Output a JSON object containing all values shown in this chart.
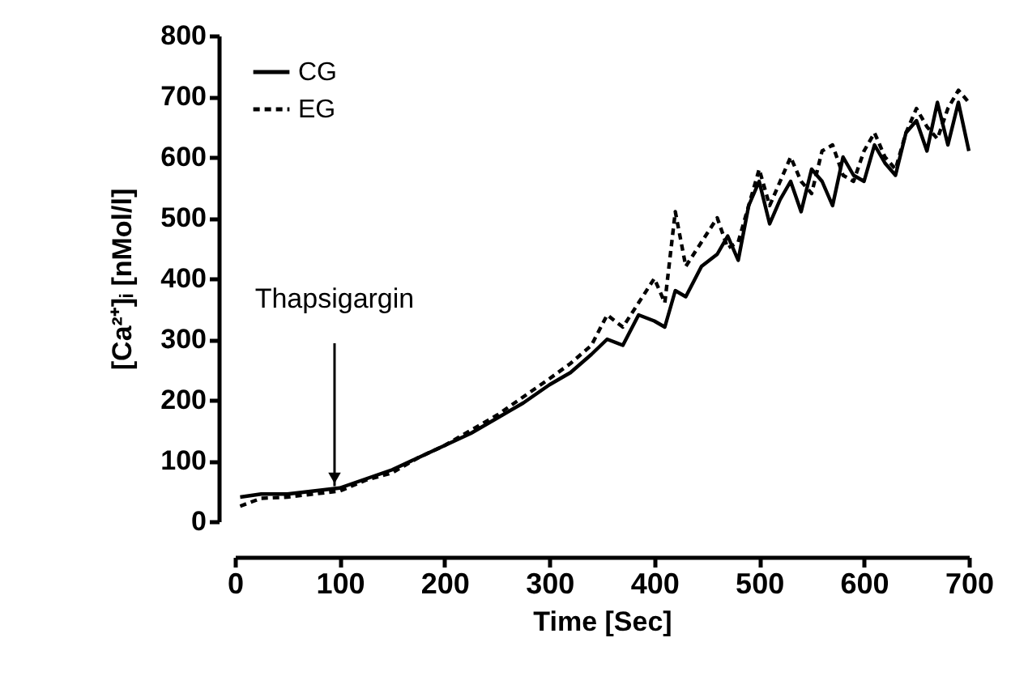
{
  "chart_data": {
    "type": "line",
    "xlabel": "Time     [Sec]",
    "ylabel": "[Ca²⁺]ᵢ     [nMol/l]",
    "xlim": [
      0,
      700
    ],
    "ylim": [
      0,
      800
    ],
    "xticks": [
      0,
      100,
      200,
      300,
      400,
      500,
      600,
      700
    ],
    "yticks": [
      0,
      100,
      200,
      300,
      400,
      500,
      600,
      700,
      800
    ],
    "legend": "top left",
    "grid": false,
    "annotations": [
      {
        "text": "Thapsigargin",
        "x": 95,
        "y": 58
      }
    ],
    "x": [
      5,
      25,
      50,
      75,
      100,
      125,
      150,
      175,
      200,
      225,
      250,
      275,
      300,
      320,
      340,
      355,
      370,
      385,
      400,
      410,
      420,
      430,
      445,
      460,
      470,
      480,
      490,
      500,
      510,
      520,
      530,
      540,
      550,
      560,
      570,
      580,
      590,
      600,
      610,
      620,
      630,
      640,
      650,
      660,
      670,
      680,
      690,
      700
    ],
    "series": [
      {
        "name": "CG",
        "color": "#000000",
        "line_style": "solid",
        "values": [
          40,
          45,
          45,
          50,
          55,
          70,
          85,
          105,
          125,
          145,
          170,
          195,
          225,
          245,
          275,
          300,
          290,
          340,
          330,
          320,
          380,
          370,
          420,
          440,
          470,
          430,
          520,
          560,
          490,
          530,
          560,
          510,
          580,
          560,
          520,
          600,
          570,
          560,
          620,
          590,
          570,
          640,
          660,
          610,
          690,
          620,
          690,
          610
        ]
      },
      {
        "name": "EG",
        "color": "#000000",
        "line_style": "dashed",
        "values": [
          25,
          38,
          40,
          45,
          50,
          68,
          80,
          105,
          125,
          150,
          175,
          205,
          235,
          260,
          290,
          340,
          320,
          360,
          400,
          360,
          510,
          420,
          460,
          500,
          450,
          460,
          520,
          580,
          520,
          560,
          600,
          560,
          540,
          610,
          620,
          570,
          560,
          610,
          640,
          600,
          580,
          640,
          680,
          650,
          630,
          680,
          710,
          690
        ]
      }
    ]
  }
}
